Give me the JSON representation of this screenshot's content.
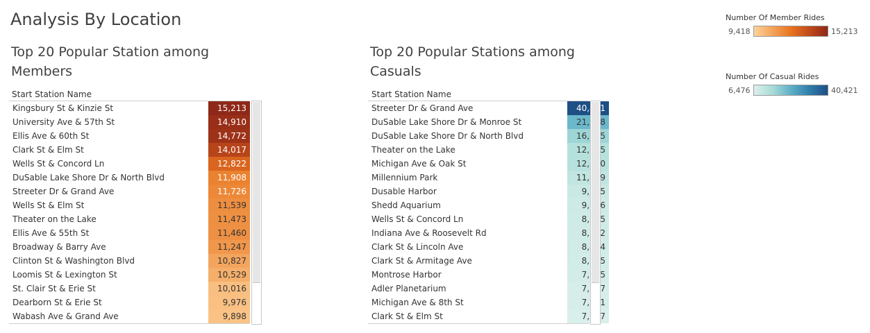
{
  "dashboard": {
    "title": "Analysis By Location"
  },
  "legends": {
    "members": {
      "title": "Number Of Member Rides",
      "min_label": "9,418",
      "max_label": "15,213",
      "min": 9418,
      "max": 15213,
      "colors": [
        "#fdd29a",
        "#f3a45c",
        "#e8741f",
        "#c14a1b",
        "#8e2818"
      ]
    },
    "casuals": {
      "title": "Number Of Casual Rides",
      "min_label": "6,476",
      "max_label": "40,421",
      "min": 6476,
      "max": 40421,
      "colors": [
        "#ddf0ec",
        "#a9dcd8",
        "#5fb0c8",
        "#2f7eab",
        "#1e4f85"
      ]
    }
  },
  "chart_data": [
    {
      "type": "table",
      "title": "Top 20 Popular Station among Members",
      "column_header": "Start Station Name",
      "legend_key": "members",
      "categories": [
        "Kingsbury St & Kinzie St",
        "University Ave & 57th St",
        "Ellis Ave & 60th St",
        "Clark St & Elm St",
        "Wells St & Concord Ln",
        "DuSable Lake Shore Dr & North Blvd",
        "Streeter Dr & Grand Ave",
        "Wells St & Elm St",
        "Theater on the Lake",
        "Ellis Ave & 55th St",
        "Broadway & Barry Ave",
        "Clinton St & Washington Blvd",
        "Loomis St & Lexington St",
        "St. Clair St & Erie St",
        "Dearborn St & Erie St",
        "Wabash Ave & Grand Ave"
      ],
      "values": [
        15213,
        14910,
        14772,
        14017,
        12822,
        11908,
        11726,
        11539,
        11473,
        11460,
        11247,
        10827,
        10529,
        10016,
        9976,
        9898
      ],
      "labels": [
        "15,213",
        "14,910",
        "14,772",
        "14,017",
        "12,822",
        "11,908",
        "11,726",
        "11,539",
        "11,473",
        "11,460",
        "11,247",
        "10,827",
        "10,529",
        "10,016",
        "9,976",
        "9,898"
      ]
    },
    {
      "type": "table",
      "title": "Top 20 Popular Stations among Casuals",
      "column_header": "Start Station Name",
      "legend_key": "casuals",
      "categories": [
        "Streeter Dr & Grand Ave",
        "DuSable Lake Shore Dr & Monroe St",
        "DuSable Lake Shore Dr & North Blvd",
        "Theater on the Lake",
        "Michigan Ave & Oak St",
        "Millennium Park",
        "Dusable Harbor",
        "Shedd Aquarium",
        "Wells St & Concord Ln",
        "Indiana Ave & Roosevelt Rd",
        "Clark St & Lincoln Ave",
        "Clark St & Armitage Ave",
        "Montrose Harbor",
        "Adler Planetarium",
        "Michigan Ave & 8th St",
        "Clark St & Elm St"
      ],
      "values": [
        40421,
        21998,
        16235,
        12985,
        12740,
        11099,
        9505,
        9086,
        8715,
        8632,
        8404,
        8235,
        7975,
        7687,
        7551,
        7087
      ],
      "labels": [
        "40,421",
        "21,998",
        "16,235",
        "12,985",
        "12,740",
        "11,099",
        "9,505",
        "9,086",
        "8,715",
        "8,632",
        "8,404",
        "8,235",
        "7,975",
        "7,687",
        "7,551",
        "7,087"
      ]
    }
  ]
}
